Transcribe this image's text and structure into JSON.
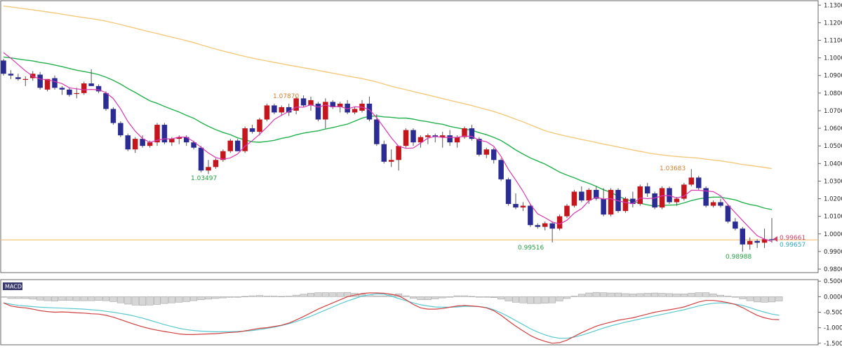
{
  "colors": {
    "bull": "#c4161c",
    "bear": "#2b2b94",
    "wick": "#555555",
    "ma_fast": "#d838b4",
    "ma_mid": "#22b14c",
    "ma_slow": "#f5c97a",
    "hline": "#f0c070",
    "macd_line": "#d04040",
    "signal_line": "#59c8d0",
    "hist_fill": "#d6d6d6",
    "hist_stroke": "#9a9a9a",
    "annot_high": "#d08030",
    "annot_low": "#22a040",
    "last_price": "#d0406a",
    "last_price2": "#30a8c0",
    "panel_border": "#666666",
    "macd_badge": "#3a3a6e"
  },
  "price_axis": {
    "ticks": [
      "1.13000",
      "1.12000",
      "1.11000",
      "1.10000",
      "1.09000",
      "1.08000",
      "1.07000",
      "1.06000",
      "1.05000",
      "1.04000",
      "1.03000",
      "1.02000",
      "1.01000",
      "1.00000",
      "0.99000",
      "0.98000"
    ]
  },
  "macd_axis": {
    "label": "MACD",
    "ticks": [
      "0.5000",
      "0.0000",
      "-0.5000",
      "-1.0000",
      "-1.5000"
    ]
  },
  "annotations": {
    "high_1": "1.07870",
    "low_1": "1.03497",
    "low_2": "0.99516",
    "high_2": "1.03683",
    "low_3": "0.98988",
    "last_price": "0.99661",
    "last_price_2": "0.99657"
  },
  "chart_data": [
    {
      "type": "candlestick",
      "ylim": [
        0.978,
        1.1325
      ],
      "horizontal_line": 0.9966,
      "candles": [
        [
          1.0985,
          1.0995,
          1.09,
          1.091
        ],
        [
          1.091,
          1.093,
          1.088,
          1.09
        ],
        [
          1.089,
          1.091,
          1.087,
          1.088
        ],
        [
          1.0875,
          1.0895,
          1.084,
          1.088
        ],
        [
          1.0885,
          1.0925,
          1.087,
          1.091
        ],
        [
          1.0905,
          1.092,
          1.082,
          1.083
        ],
        [
          1.082,
          1.088,
          1.081,
          1.088
        ],
        [
          1.0885,
          1.09,
          1.082,
          1.083
        ],
        [
          1.083,
          1.084,
          1.079,
          1.082
        ],
        [
          1.082,
          1.083,
          1.078,
          1.079
        ],
        [
          1.0795,
          1.083,
          1.077,
          1.08
        ],
        [
          1.08,
          1.0865,
          1.079,
          1.0855
        ],
        [
          1.0855,
          1.0935,
          1.084,
          1.084
        ],
        [
          1.084,
          1.085,
          1.08,
          1.081
        ],
        [
          1.08,
          1.081,
          1.07,
          1.071
        ],
        [
          1.071,
          1.072,
          1.062,
          1.063
        ],
        [
          1.063,
          1.064,
          1.055,
          1.056
        ],
        [
          1.056,
          1.057,
          1.047,
          1.048
        ],
        [
          1.048,
          1.055,
          1.046,
          1.054
        ],
        [
          1.054,
          1.056,
          1.049,
          1.05
        ],
        [
          1.05,
          1.053,
          1.049,
          1.052
        ],
        [
          1.052,
          1.063,
          1.05,
          1.062
        ],
        [
          1.062,
          1.063,
          1.051,
          1.052
        ],
        [
          1.052,
          1.055,
          1.05,
          1.054
        ],
        [
          1.054,
          1.056,
          1.051,
          1.055
        ],
        [
          1.055,
          1.056,
          1.05,
          1.052
        ],
        [
          1.052,
          1.053,
          1.048,
          1.049
        ],
        [
          1.049,
          1.05,
          1.035,
          1.036
        ],
        [
          1.036,
          1.042,
          1.034,
          1.038
        ],
        [
          1.038,
          1.043,
          1.037,
          1.042
        ],
        [
          1.042,
          1.048,
          1.041,
          1.047
        ],
        [
          1.047,
          1.054,
          1.046,
          1.053
        ],
        [
          1.053,
          1.054,
          1.047,
          1.047
        ],
        [
          1.047,
          1.061,
          1.046,
          1.06
        ],
        [
          1.06,
          1.062,
          1.057,
          1.058
        ],
        [
          1.058,
          1.066,
          1.056,
          1.065
        ],
        [
          1.065,
          1.074,
          1.064,
          1.073
        ],
        [
          1.073,
          1.074,
          1.068,
          1.069
        ],
        [
          1.069,
          1.073,
          1.067,
          1.072
        ],
        [
          1.072,
          1.074,
          1.067,
          1.069
        ],
        [
          1.07,
          1.078,
          1.068,
          1.077
        ],
        [
          1.077,
          1.0787,
          1.072,
          1.073
        ],
        [
          1.073,
          1.078,
          1.07,
          1.076
        ],
        [
          1.074,
          1.075,
          1.064,
          1.065
        ],
        [
          1.065,
          1.077,
          1.06,
          1.075
        ],
        [
          1.075,
          1.076,
          1.071,
          1.072
        ],
        [
          1.072,
          1.075,
          1.069,
          1.074
        ],
        [
          1.074,
          1.076,
          1.068,
          1.069
        ],
        [
          1.069,
          1.072,
          1.068,
          1.071
        ],
        [
          1.07,
          1.076,
          1.069,
          1.074
        ],
        [
          1.074,
          1.078,
          1.064,
          1.065
        ],
        [
          1.065,
          1.068,
          1.05,
          1.051
        ],
        [
          1.051,
          1.053,
          1.04,
          1.041
        ],
        [
          1.041,
          1.048,
          1.038,
          1.042
        ],
        [
          1.042,
          1.05,
          1.036,
          1.05
        ],
        [
          1.05,
          1.06,
          1.049,
          1.059
        ],
        [
          1.059,
          1.06,
          1.05,
          1.052
        ],
        [
          1.052,
          1.056,
          1.049,
          1.055
        ],
        [
          1.055,
          1.057,
          1.051,
          1.056
        ],
        [
          1.056,
          1.057,
          1.052,
          1.055
        ],
        [
          1.055,
          1.058,
          1.049,
          1.056
        ],
        [
          1.056,
          1.059,
          1.05,
          1.052
        ],
        [
          1.052,
          1.056,
          1.049,
          1.055
        ],
        [
          1.055,
          1.061,
          1.054,
          1.06
        ],
        [
          1.06,
          1.062,
          1.053,
          1.054
        ],
        [
          1.054,
          1.055,
          1.044,
          1.045
        ],
        [
          1.045,
          1.049,
          1.043,
          1.048
        ],
        [
          1.048,
          1.049,
          1.04,
          1.042
        ],
        [
          1.042,
          1.043,
          1.03,
          1.031
        ],
        [
          1.031,
          1.032,
          1.016,
          1.017
        ],
        [
          1.017,
          1.023,
          1.014,
          1.015
        ],
        [
          1.015,
          1.018,
          1.013,
          1.016
        ],
        [
          1.016,
          1.017,
          1.004,
          1.005
        ],
        [
          1.005,
          1.006,
          1.003,
          1.004
        ],
        [
          1.004,
          1.007,
          1.002,
          1.006
        ],
        [
          1.006,
          1.007,
          0.99516,
          1.003
        ],
        [
          1.003,
          1.011,
          1.002,
          1.01
        ],
        [
          1.01,
          1.017,
          1.009,
          1.016
        ],
        [
          1.016,
          1.025,
          1.015,
          1.024
        ],
        [
          1.024,
          1.027,
          1.018,
          1.019
        ],
        [
          1.019,
          1.026,
          1.017,
          1.025
        ],
        [
          1.025,
          1.027,
          1.019,
          1.02
        ],
        [
          1.02,
          1.026,
          1.01,
          1.011
        ],
        [
          1.011,
          1.026,
          1.01,
          1.025
        ],
        [
          1.025,
          1.026,
          1.012,
          1.013
        ],
        [
          1.013,
          1.021,
          1.012,
          1.02
        ],
        [
          1.02,
          1.024,
          1.015,
          1.017
        ],
        [
          1.017,
          1.028,
          1.016,
          1.027
        ],
        [
          1.027,
          1.029,
          1.021,
          1.023
        ],
        [
          1.023,
          1.024,
          1.014,
          1.015
        ],
        [
          1.015,
          1.027,
          1.014,
          1.026
        ],
        [
          1.026,
          1.027,
          1.017,
          1.018
        ],
        [
          1.018,
          1.021,
          1.016,
          1.02
        ],
        [
          1.02,
          1.029,
          1.019,
          1.028
        ],
        [
          1.028,
          1.03683,
          1.027,
          1.032
        ],
        [
          1.032,
          1.033,
          1.025,
          1.026
        ],
        [
          1.026,
          1.027,
          1.015,
          1.016
        ],
        [
          1.016,
          1.019,
          1.015,
          1.018
        ],
        [
          1.018,
          1.02,
          1.015,
          1.016
        ],
        [
          1.016,
          1.017,
          1.006,
          1.007
        ],
        [
          1.007,
          1.009,
          1.002,
          1.003
        ],
        [
          1.003,
          1.004,
          0.98988,
          0.994
        ],
        [
          0.994,
          0.998,
          0.991,
          0.996
        ],
        [
          0.996,
          0.997,
          0.992,
          0.995
        ],
        [
          0.995,
          1.003,
          0.992,
          0.997
        ],
        [
          0.997,
          1.009,
          0.995,
          0.99661
        ]
      ]
    },
    {
      "type": "line",
      "title": "MACD",
      "ylim": [
        -1.55,
        0.55
      ],
      "macd": [
        -0.2,
        -0.3,
        -0.34,
        -0.36,
        -0.4,
        -0.45,
        -0.48,
        -0.5,
        -0.49,
        -0.5,
        -0.52,
        -0.53,
        -0.55,
        -0.56,
        -0.6,
        -0.66,
        -0.74,
        -0.82,
        -0.9,
        -0.97,
        -1.03,
        -1.08,
        -1.12,
        -1.16,
        -1.2,
        -1.22,
        -1.22,
        -1.21,
        -1.2,
        -1.19,
        -1.17,
        -1.15,
        -1.14,
        -1.1,
        -1.06,
        -1.02,
        -1.0,
        -0.96,
        -0.92,
        -0.85,
        -0.75,
        -0.64,
        -0.52,
        -0.4,
        -0.3,
        -0.2,
        -0.1,
        0.0,
        0.05,
        0.1,
        0.12,
        0.12,
        0.11,
        0.08,
        0.03,
        -0.1,
        -0.25,
        -0.36,
        -0.4,
        -0.4,
        -0.38,
        -0.34,
        -0.3,
        -0.28,
        -0.3,
        -0.32,
        -0.36,
        -0.45,
        -0.6,
        -0.78,
        -0.95,
        -1.1,
        -1.25,
        -1.36,
        -1.44,
        -1.5,
        -1.48,
        -1.4,
        -1.28,
        -1.16,
        -1.05,
        -0.95,
        -0.88,
        -0.82,
        -0.76,
        -0.72,
        -0.68,
        -0.62,
        -0.56,
        -0.5,
        -0.46,
        -0.42,
        -0.38,
        -0.33,
        -0.25,
        -0.17,
        -0.12,
        -0.12,
        -0.15,
        -0.19,
        -0.25,
        -0.35,
        -0.48,
        -0.6,
        -0.68,
        -0.73,
        -0.74
      ],
      "signal": [
        -0.2,
        -0.24,
        -0.28,
        -0.3,
        -0.32,
        -0.34,
        -0.35,
        -0.36,
        -0.37,
        -0.38,
        -0.39,
        -0.4,
        -0.42,
        -0.44,
        -0.47,
        -0.5,
        -0.54,
        -0.58,
        -0.63,
        -0.69,
        -0.76,
        -0.83,
        -0.9,
        -0.96,
        -1.02,
        -1.06,
        -1.09,
        -1.11,
        -1.12,
        -1.13,
        -1.13,
        -1.13,
        -1.12,
        -1.11,
        -1.09,
        -1.06,
        -1.02,
        -0.98,
        -0.93,
        -0.87,
        -0.8,
        -0.72,
        -0.63,
        -0.53,
        -0.43,
        -0.33,
        -0.23,
        -0.14,
        -0.06,
        0.02,
        0.06,
        0.09,
        0.08,
        0.02,
        -0.06,
        -0.13,
        -0.2,
        -0.26,
        -0.3,
        -0.33,
        -0.34,
        -0.34,
        -0.33,
        -0.31,
        -0.31,
        -0.32,
        -0.35,
        -0.42,
        -0.52,
        -0.64,
        -0.77,
        -0.9,
        -1.03,
        -1.14,
        -1.23,
        -1.3,
        -1.34,
        -1.34,
        -1.3,
        -1.24,
        -1.17,
        -1.09,
        -1.01,
        -0.94,
        -0.88,
        -0.82,
        -0.77,
        -0.72,
        -0.67,
        -0.62,
        -0.57,
        -0.52,
        -0.47,
        -0.42,
        -0.36,
        -0.3,
        -0.25,
        -0.21,
        -0.2,
        -0.21,
        -0.24,
        -0.28,
        -0.35,
        -0.43,
        -0.5,
        -0.56,
        -0.6
      ],
      "histogram": [
        0.0,
        -0.06,
        -0.06,
        -0.06,
        -0.08,
        -0.11,
        -0.13,
        -0.14,
        -0.12,
        -0.12,
        -0.13,
        -0.13,
        -0.13,
        -0.12,
        -0.13,
        -0.16,
        -0.2,
        -0.24,
        -0.27,
        -0.28,
        -0.27,
        -0.25,
        -0.22,
        -0.2,
        -0.18,
        -0.16,
        -0.13,
        -0.1,
        -0.08,
        -0.06,
        -0.04,
        -0.02,
        -0.02,
        0.01,
        0.03,
        0.04,
        0.02,
        0.02,
        0.01,
        0.02,
        0.05,
        0.08,
        0.11,
        0.13,
        0.13,
        0.13,
        0.13,
        0.14,
        0.11,
        0.08,
        0.06,
        0.03,
        0.03,
        0.06,
        0.09,
        0.03,
        -0.05,
        -0.1,
        -0.1,
        -0.07,
        -0.04,
        0.0,
        0.03,
        0.03,
        0.01,
        0.0,
        -0.01,
        -0.03,
        -0.08,
        -0.14,
        -0.18,
        -0.2,
        -0.22,
        -0.22,
        -0.21,
        -0.2,
        -0.14,
        -0.06,
        0.02,
        0.08,
        0.12,
        0.14,
        0.13,
        0.12,
        0.12,
        0.1,
        0.09,
        0.1,
        0.11,
        0.12,
        0.11,
        0.1,
        0.09,
        0.09,
        0.11,
        0.13,
        0.13,
        0.09,
        0.05,
        0.02,
        -0.01,
        -0.07,
        -0.13,
        -0.17,
        -0.18,
        -0.17,
        -0.14
      ]
    }
  ]
}
